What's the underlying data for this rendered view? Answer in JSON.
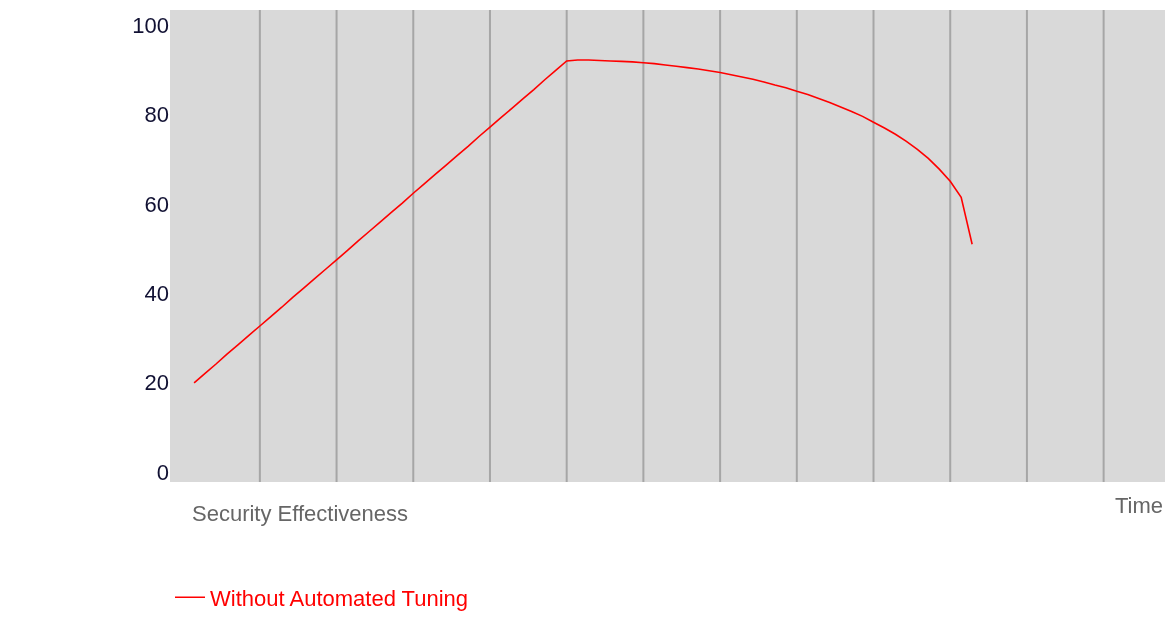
{
  "chart_data": {
    "type": "line",
    "annotations": [
      "Security Effectiveness",
      "Time"
    ],
    "categories": [
      null,
      null,
      null,
      null,
      null,
      null,
      null,
      null,
      null,
      null,
      null,
      null,
      null,
      null,
      null,
      null,
      null,
      null,
      null,
      null,
      null,
      null,
      null,
      null,
      null,
      null,
      null,
      null,
      null,
      null,
      null,
      null,
      null,
      null,
      null,
      null,
      null,
      null,
      null,
      null,
      null,
      null,
      null,
      null,
      null,
      null,
      null,
      null,
      null,
      null,
      null,
      null,
      null,
      null,
      null,
      null,
      null,
      null,
      null,
      null,
      null,
      null,
      null,
      null,
      null,
      null,
      null,
      null,
      null,
      null,
      null,
      null
    ],
    "series": [
      {
        "name": "Without Automated Tuning",
        "color": "#ff0000",
        "values": [
          20,
          22.1,
          24.2,
          26.4,
          28.5,
          30.6,
          32.7,
          34.8,
          36.9,
          39.1,
          41.2,
          43.3,
          45.4,
          47.5,
          49.6,
          51.8,
          53.9,
          56,
          58.1,
          60.2,
          62.4,
          64.5,
          66.6,
          68.7,
          70.8,
          72.9,
          75.1,
          77.2,
          79.3,
          81.4,
          83.5,
          85.6,
          87.8,
          89.9,
          92,
          92.2,
          92.2,
          92.1,
          92,
          91.9,
          91.8,
          91.6,
          91.4,
          91.1,
          90.8,
          90.5,
          90.2,
          89.8,
          89.4,
          88.9,
          88.4,
          87.9,
          87.3,
          86.6,
          86,
          85.2,
          84.5,
          83.6,
          82.7,
          81.7,
          80.7,
          79.6,
          78.3,
          77,
          75.6,
          74,
          72.2,
          70.2,
          67.8,
          65.1,
          61.5,
          51
        ]
      }
    ],
    "ylim": [
      -2.2,
      103.4
    ],
    "yticks": [
      0,
      20,
      40,
      60,
      80,
      100
    ],
    "grid": "x",
    "legend": "bottom left",
    "marker": "none",
    "line_style": "solid"
  }
}
